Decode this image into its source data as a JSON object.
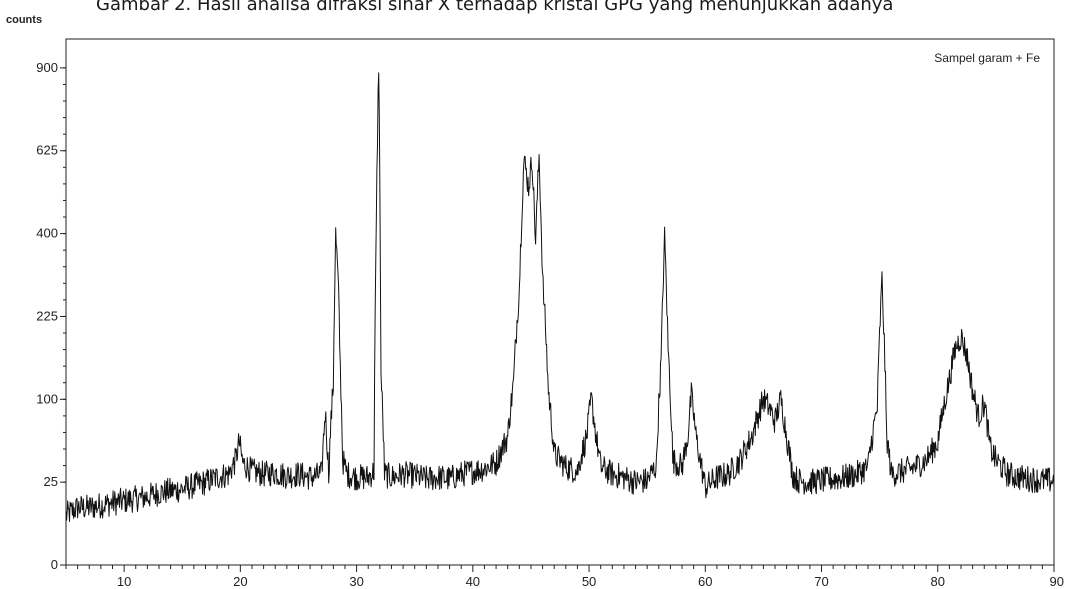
{
  "caption": "Gambar 2. Hasil analisa difraksi sinar X terhadap kristal GPG yang menunjukkan adanya",
  "chart_data": {
    "type": "line",
    "title": "",
    "y_unit_label": "counts",
    "xlabel": "",
    "ylabel": "counts",
    "xlim": [
      5,
      90
    ],
    "ylim": [
      0,
      1000
    ],
    "y_scale": "sqrt",
    "y_ticks": [
      0,
      25,
      100,
      225,
      400,
      625,
      900
    ],
    "y_tick_labels": [
      "0",
      "25",
      "100",
      "225",
      "400",
      "625",
      "900"
    ],
    "x_ticks": [
      10,
      20,
      30,
      40,
      50,
      60,
      70,
      80,
      90
    ],
    "x_tick_labels": [
      "10",
      "20",
      "30",
      "40",
      "50",
      "60",
      "70",
      "80",
      "90"
    ],
    "grid": false,
    "legend_position": "top-right",
    "series": [
      {
        "name": "Sampel garam + Fe",
        "color": "#111111",
        "x": [
          5,
          6,
          7,
          8,
          9,
          10,
          11,
          12,
          13,
          14,
          15,
          16,
          17,
          18,
          19,
          19.6,
          19.9,
          20.2,
          21,
          22,
          23,
          24,
          25,
          26,
          27,
          27.3,
          27.6,
          28,
          28.2,
          28.4,
          28.6,
          28.8,
          29.2,
          30,
          31,
          31.5,
          31.7,
          31.9,
          32.1,
          32.4,
          33,
          34,
          35,
          36,
          37,
          38,
          39,
          40,
          41,
          42,
          43,
          43.5,
          44,
          44.4,
          44.8,
          45.1,
          45.4,
          45.7,
          46,
          46.5,
          47,
          48,
          49,
          49.8,
          50.2,
          50.6,
          51,
          52,
          53,
          54,
          55,
          55.8,
          56.2,
          56.5,
          56.8,
          57.2,
          58,
          58.5,
          58.8,
          59.2,
          59.6,
          60,
          61,
          62,
          63,
          64,
          64.5,
          65,
          65.5,
          66,
          66.5,
          67,
          67.5,
          68,
          69,
          70,
          71,
          72,
          73,
          74,
          74.8,
          75.2,
          75.6,
          76,
          77,
          78,
          79,
          80,
          80.5,
          81,
          81.5,
          82,
          82.5,
          83,
          83.5,
          84,
          84.5,
          85,
          86,
          87,
          88,
          89,
          90
        ],
        "y": [
          9,
          12,
          12,
          13,
          14,
          15,
          16,
          17,
          19,
          20,
          21,
          23,
          25,
          28,
          30,
          40,
          55,
          38,
          32,
          30,
          31,
          29,
          30,
          28,
          30,
          85,
          30,
          120,
          400,
          300,
          140,
          40,
          30,
          28,
          28,
          32,
          420,
          920,
          130,
          30,
          28,
          30,
          29,
          27,
          28,
          27,
          30,
          32,
          34,
          38,
          60,
          120,
          280,
          600,
          520,
          600,
          380,
          610,
          300,
          110,
          45,
          35,
          32,
          60,
          100,
          60,
          35,
          30,
          28,
          25,
          26,
          36,
          150,
          390,
          170,
          40,
          35,
          60,
          105,
          60,
          38,
          22,
          28,
          30,
          40,
          60,
          80,
          100,
          90,
          75,
          100,
          60,
          30,
          26,
          25,
          26,
          27,
          28,
          30,
          35,
          90,
          295,
          60,
          30,
          32,
          35,
          40,
          55,
          90,
          125,
          170,
          190,
          160,
          110,
          80,
          95,
          50,
          40,
          30,
          28,
          27,
          26,
          26
        ]
      }
    ]
  }
}
